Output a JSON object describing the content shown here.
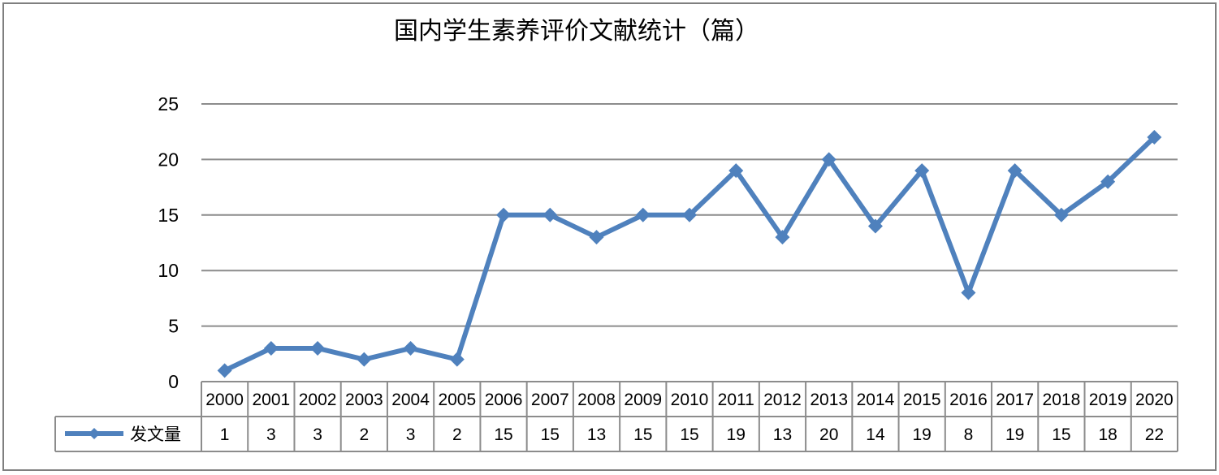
{
  "chart_data": {
    "type": "line",
    "title": "国内学生素养评价文献统计（篇）",
    "xlabel": "",
    "ylabel": "",
    "ylim": [
      0,
      25
    ],
    "yticks": [
      0,
      5,
      10,
      15,
      20,
      25
    ],
    "grid": true,
    "legend": "data-table-left",
    "categories": [
      "2000",
      "2001",
      "2002",
      "2003",
      "2004",
      "2005",
      "2006",
      "2007",
      "2008",
      "2009",
      "2010",
      "2011",
      "2012",
      "2013",
      "2014",
      "2015",
      "2016",
      "2017",
      "2018",
      "2019",
      "2020"
    ],
    "series": [
      {
        "name": "发文量",
        "values": [
          1,
          3,
          3,
          2,
          3,
          2,
          15,
          15,
          13,
          15,
          15,
          19,
          13,
          20,
          14,
          19,
          8,
          19,
          15,
          18,
          22
        ],
        "color": "#4F81BD",
        "marker": "diamond"
      }
    ]
  },
  "colors": {
    "line": "#4F81BD",
    "grid": "#8C8C8C",
    "table_border": "#8C8C8C",
    "frame": "#7F7F7F"
  }
}
